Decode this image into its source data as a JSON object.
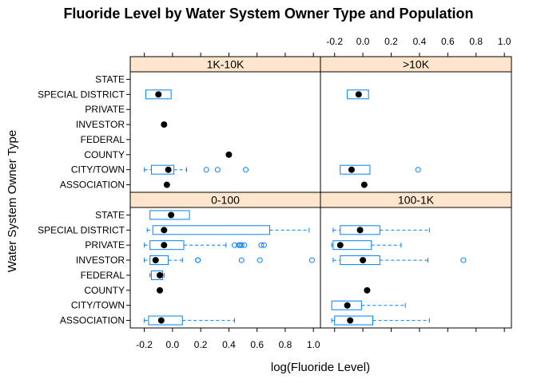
{
  "chart_data": {
    "type": "box",
    "title": "Fluoride Level by Water System Owner Type and Population",
    "xlabel": "log(Fluoride Level)",
    "ylabel": "Water System Owner Type",
    "xlim": [
      -0.3,
      1.05
    ],
    "x_ticks": [
      -0.2,
      0.0,
      0.2,
      0.4,
      0.6,
      0.8,
      1.0
    ],
    "x_tick_labels": [
      "-0.2",
      "0.0",
      "0.2",
      "0.4",
      "0.6",
      "0.8",
      "1.0"
    ],
    "categories": [
      "ASSOCIATION",
      "CITY/TOWN",
      "COUNTY",
      "FEDERAL",
      "INVESTOR",
      "PRIVATE",
      "SPECIAL DISTRICT",
      "STATE"
    ],
    "colors": {
      "box": "#0080ff",
      "median": "#000000",
      "strip": "#ffe5cc",
      "frame": "#000000"
    },
    "panels": [
      {
        "strip": "1K-10K",
        "boxes": [
          {
            "category": "ASSOCIATION",
            "min": -0.04,
            "q1": -0.04,
            "median": -0.04,
            "q3": -0.04,
            "max": -0.04,
            "outliers": []
          },
          {
            "category": "CITY/TOWN",
            "min": -0.2,
            "q1": -0.15,
            "median": -0.03,
            "q3": 0.01,
            "max": 0.1,
            "outliers": [
              0.24,
              0.32,
              0.52
            ]
          },
          {
            "category": "COUNTY",
            "min": 0.4,
            "q1": 0.4,
            "median": 0.4,
            "q3": 0.4,
            "max": 0.4,
            "outliers": []
          },
          {
            "category": "INVESTOR",
            "min": -0.06,
            "q1": -0.06,
            "median": -0.06,
            "q3": -0.06,
            "max": -0.06,
            "outliers": []
          },
          {
            "category": "SPECIAL DISTRICT",
            "min": -0.19,
            "q1": -0.19,
            "median": -0.1,
            "q3": -0.01,
            "max": -0.01,
            "outliers": []
          }
        ]
      },
      {
        "strip": ">10K",
        "boxes": [
          {
            "category": "ASSOCIATION",
            "min": 0.01,
            "q1": 0.01,
            "median": 0.01,
            "q3": 0.01,
            "max": 0.01,
            "outliers": []
          },
          {
            "category": "CITY/TOWN",
            "min": -0.16,
            "q1": -0.16,
            "median": -0.08,
            "q3": 0.05,
            "max": 0.05,
            "outliers": [
              0.39
            ]
          },
          {
            "category": "SPECIAL DISTRICT",
            "min": -0.11,
            "q1": -0.11,
            "median": -0.03,
            "q3": 0.04,
            "max": 0.04,
            "outliers": []
          }
        ]
      },
      {
        "strip": "0-100",
        "boxes": [
          {
            "category": "ASSOCIATION",
            "min": -0.2,
            "q1": -0.17,
            "median": -0.08,
            "q3": 0.07,
            "max": 0.44,
            "outliers": []
          },
          {
            "category": "COUNTY",
            "min": -0.09,
            "q1": -0.09,
            "median": -0.09,
            "q3": -0.09,
            "max": -0.09,
            "outliers": []
          },
          {
            "category": "FEDERAL",
            "min": -0.16,
            "q1": -0.15,
            "median": -0.09,
            "q3": -0.07,
            "max": -0.06,
            "outliers": []
          },
          {
            "category": "INVESTOR",
            "min": -0.2,
            "q1": -0.16,
            "median": -0.12,
            "q3": -0.03,
            "max": 0.07,
            "outliers": [
              0.18,
              0.18,
              0.49,
              0.62,
              0.99
            ]
          },
          {
            "category": "PRIVATE",
            "min": -0.2,
            "q1": -0.16,
            "median": -0.06,
            "q3": 0.08,
            "max": 0.38,
            "outliers": [
              0.44,
              0.47,
              0.48,
              0.49,
              0.51,
              0.63,
              0.65
            ]
          },
          {
            "category": "SPECIAL DISTRICT",
            "min": -0.18,
            "q1": -0.14,
            "median": -0.06,
            "q3": 0.69,
            "max": 0.97,
            "outliers": []
          },
          {
            "category": "STATE",
            "min": -0.16,
            "q1": -0.16,
            "median": -0.01,
            "q3": 0.12,
            "max": 0.12,
            "outliers": []
          }
        ]
      },
      {
        "strip": "100-1K",
        "boxes": [
          {
            "category": "ASSOCIATION",
            "min": -0.22,
            "q1": -0.2,
            "median": -0.09,
            "q3": 0.07,
            "max": 0.47,
            "outliers": []
          },
          {
            "category": "CITY/TOWN",
            "min": -0.22,
            "q1": -0.22,
            "median": -0.11,
            "q3": -0.01,
            "max": 0.3,
            "outliers": []
          },
          {
            "category": "COUNTY",
            "min": 0.03,
            "q1": 0.03,
            "median": 0.03,
            "q3": 0.03,
            "max": 0.03,
            "outliers": []
          },
          {
            "category": "INVESTOR",
            "min": -0.21,
            "q1": -0.16,
            "median": 0.0,
            "q3": 0.12,
            "max": 0.46,
            "outliers": [
              0.71
            ]
          },
          {
            "category": "PRIVATE",
            "min": -0.22,
            "q1": -0.21,
            "median": -0.16,
            "q3": 0.06,
            "max": 0.27,
            "outliers": []
          },
          {
            "category": "SPECIAL DISTRICT",
            "min": -0.21,
            "q1": -0.16,
            "median": -0.02,
            "q3": 0.12,
            "max": 0.47,
            "outliers": []
          }
        ]
      }
    ]
  }
}
